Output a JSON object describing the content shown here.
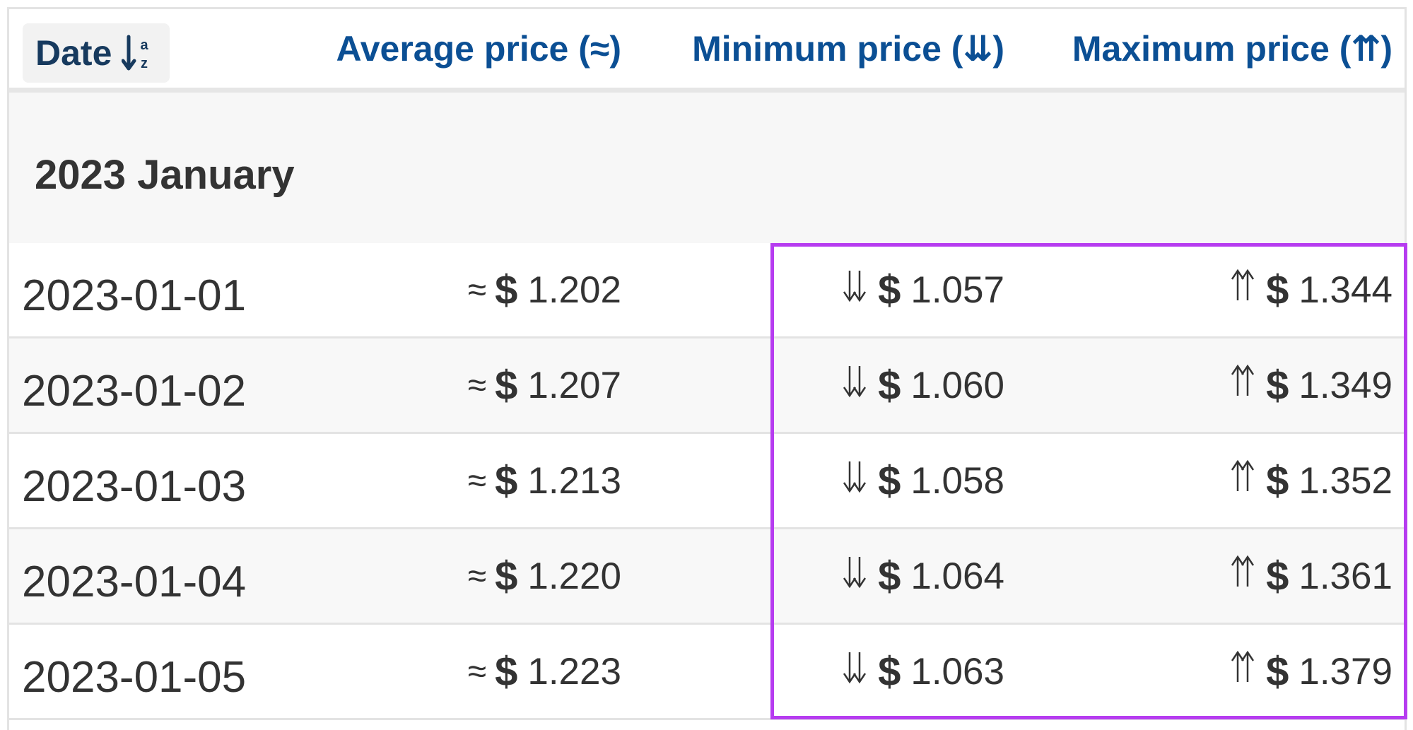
{
  "header": {
    "date_label": "Date",
    "avg_label": "Average price (≈)",
    "min_label": "Minimum price (⇊)",
    "max_label": "Maximum price (⇈)",
    "sort_icon": "sort-alpha-icon"
  },
  "group": {
    "label": "2023 January"
  },
  "symbols": {
    "approx": "≈",
    "min_arrow": "down-double-arrow-icon",
    "max_arrow": "up-double-arrow-icon",
    "currency": "$"
  },
  "rows": [
    {
      "date": "2023-01-01",
      "avg": "1.202",
      "min": "1.057",
      "max": "1.344"
    },
    {
      "date": "2023-01-02",
      "avg": "1.207",
      "min": "1.060",
      "max": "1.349"
    },
    {
      "date": "2023-01-03",
      "avg": "1.213",
      "min": "1.058",
      "max": "1.352"
    },
    {
      "date": "2023-01-04",
      "avg": "1.220",
      "min": "1.064",
      "max": "1.361"
    },
    {
      "date": "2023-01-05",
      "avg": "1.223",
      "min": "1.063",
      "max": "1.379"
    }
  ],
  "colors": {
    "header_link": "#0b4f94",
    "highlight_border": "#b63cf0",
    "text": "#333333"
  }
}
